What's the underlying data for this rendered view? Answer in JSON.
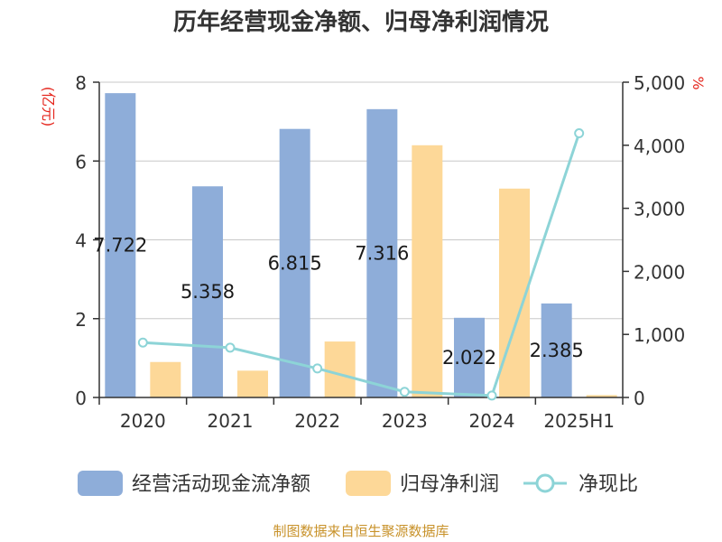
{
  "chart_data": {
    "type": "bar",
    "title": "历年经营现金净额、归母净利润情况",
    "categories": [
      "2020",
      "2021",
      "2022",
      "2023",
      "2024",
      "2025H1"
    ],
    "series": [
      {
        "name": "经营活动现金流净额",
        "type": "bar",
        "axis": "left",
        "values": [
          7.722,
          5.358,
          6.815,
          7.316,
          2.022,
          2.385
        ],
        "color": "#8eadd9"
      },
      {
        "name": "归母净利润",
        "type": "bar",
        "axis": "left",
        "values": [
          0.9,
          0.68,
          1.42,
          6.4,
          5.3,
          0.06
        ],
        "color": "#fdd898"
      },
      {
        "name": "净现比",
        "type": "line",
        "axis": "right",
        "values": [
          870,
          790,
          460,
          90,
          30,
          4190
        ],
        "color": "#8dd4d7"
      }
    ],
    "data_labels": [
      "7.722",
      "5.358",
      "6.815",
      "7.316",
      "2.022",
      "2.385"
    ],
    "y_left": {
      "unit": "(亿元)",
      "ylim": [
        0,
        8
      ],
      "ticks": [
        "0",
        "2",
        "4",
        "6",
        "8"
      ]
    },
    "y_right": {
      "unit": "%",
      "ylim": [
        0,
        5000
      ],
      "ticks": [
        "0",
        "1,000",
        "2,000",
        "3,000",
        "4,000",
        "5,000"
      ]
    },
    "grid": true,
    "legend": "bottom"
  },
  "source": "制图数据来自恒生聚源数据库"
}
